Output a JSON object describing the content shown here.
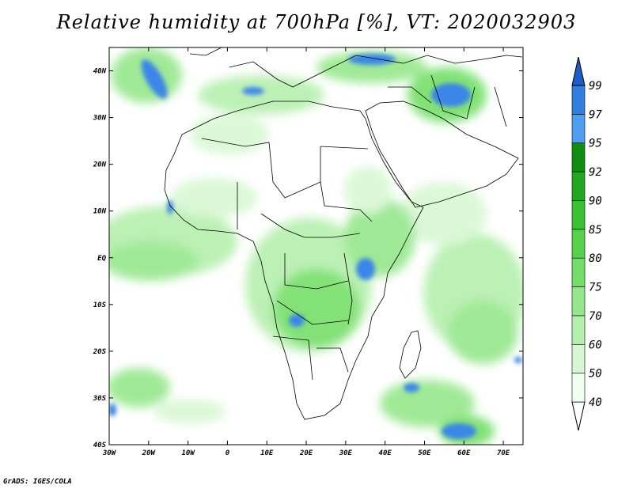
{
  "title": "Relative humidity at 700hPa [%], VT: 2020032903",
  "credit": "GrADS: IGES/COLA",
  "map": {
    "projection": "latlon",
    "lon_range": [
      -30,
      75
    ],
    "lat_range": [
      -40,
      45
    ],
    "lon_ticks": [
      "30W",
      "20W",
      "10W",
      "0",
      "10E",
      "20E",
      "30E",
      "40E",
      "50E",
      "60E",
      "70E"
    ],
    "lat_ticks": [
      "40N",
      "30N",
      "20N",
      "10N",
      "EQ",
      "10S",
      "20S",
      "30S",
      "40S"
    ]
  },
  "colorbar": {
    "levels": [
      "40",
      "50",
      "60",
      "70",
      "75",
      "80",
      "85",
      "90",
      "92",
      "95",
      "97",
      "99"
    ],
    "colors": [
      "#f0fff0",
      "#d7f7d2",
      "#b5efad",
      "#95e78b",
      "#74df68",
      "#55d14a",
      "#39c132",
      "#22a81f",
      "#118e12",
      "#4f9ef0",
      "#2f7ee0",
      "#1a5fc8"
    ]
  },
  "field_colors": {
    "very_light": "#e3f8df",
    "light": "#b5efad",
    "medium": "#74df68",
    "dark": "#39c132",
    "saturated_blue": "#3b86e8",
    "outline": "#000000"
  }
}
